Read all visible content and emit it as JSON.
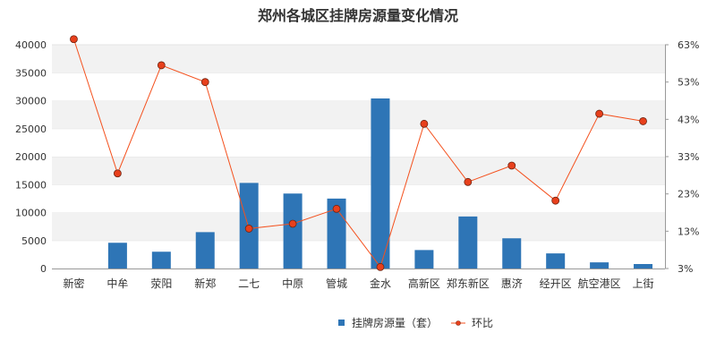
{
  "chart_data": {
    "type": "bar",
    "title": "郑州各城区挂牌房源量变化情况",
    "categories": [
      "新密",
      "中牟",
      "荥阳",
      "新郑",
      "二七",
      "中原",
      "管城",
      "金水",
      "高新区",
      "郑东新区",
      "惠济",
      "经开区",
      "航空港区",
      "上街"
    ],
    "series": [
      {
        "name": "挂牌房源量（套）",
        "type": "bar",
        "axis": "left",
        "color": "#2e75b6",
        "values": [
          0,
          4600,
          3000,
          6500,
          15300,
          13400,
          12500,
          30400,
          3300,
          9300,
          5400,
          2700,
          1100,
          800
        ]
      },
      {
        "name": "环比",
        "type": "line",
        "axis": "right",
        "color": "#f4511e",
        "marker_fill": "#e8401c",
        "values": [
          0.645,
          0.285,
          0.575,
          0.53,
          0.137,
          0.15,
          0.19,
          0.034,
          0.418,
          0.262,
          0.306,
          0.212,
          0.445,
          0.425
        ]
      }
    ],
    "ylim_left": [
      0,
      40000
    ],
    "yticks_left": [
      0,
      5000,
      10000,
      15000,
      20000,
      25000,
      30000,
      35000,
      40000
    ],
    "ylim_right": [
      0.03,
      0.63
    ],
    "yticks_right": [
      "3%",
      "13%",
      "23%",
      "33%",
      "43%",
      "53%",
      "63%"
    ],
    "grid": true,
    "legend_position": "bottom"
  }
}
